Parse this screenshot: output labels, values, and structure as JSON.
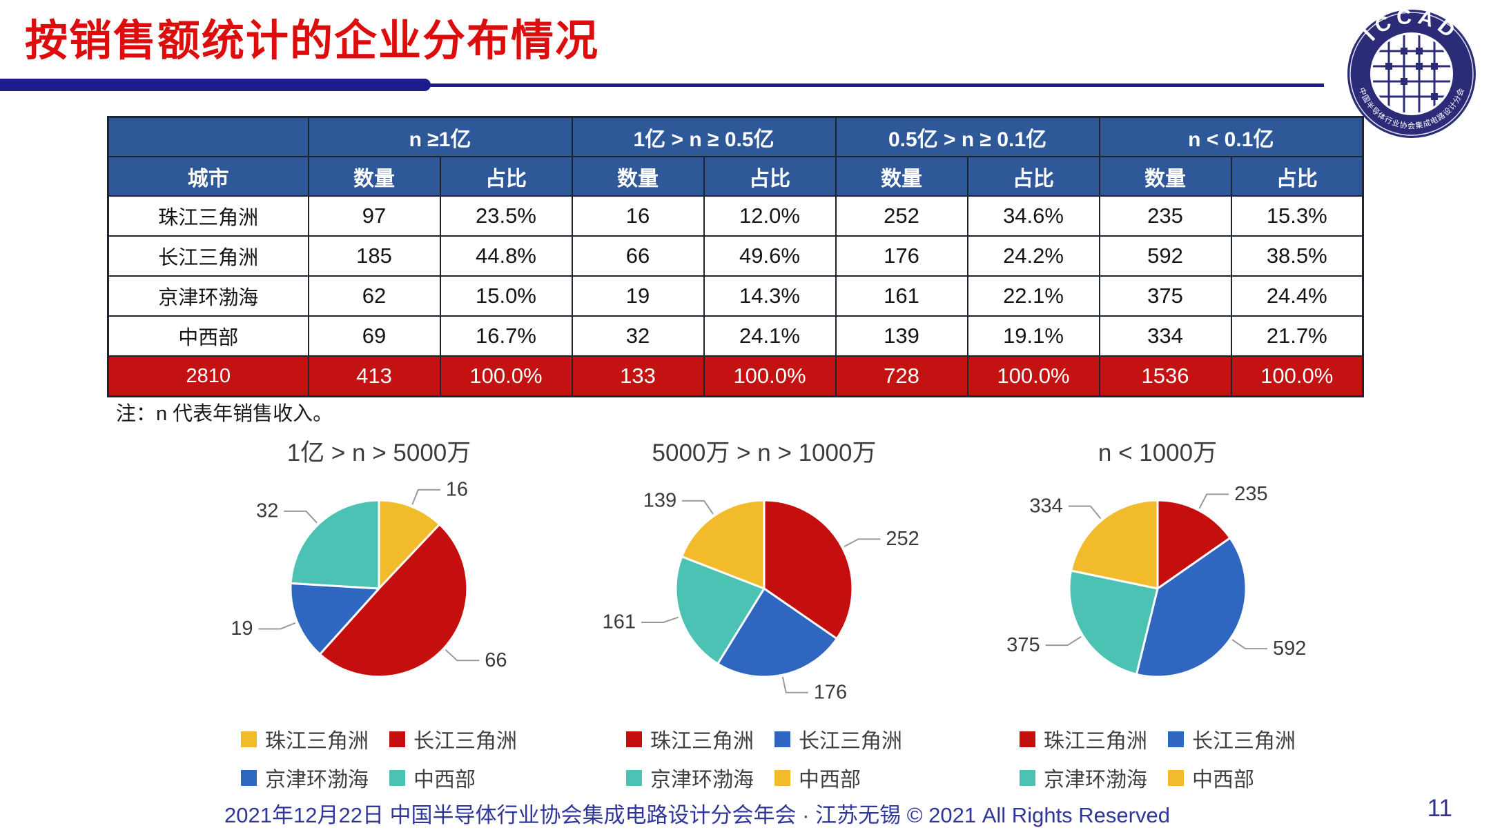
{
  "slide": {
    "title": "按销售额统计的企业分布情况",
    "note": "注：n 代表年销售收入。",
    "footer": "2021年12月22日 中国半导体行业协会集成电路设计分会年会 · 江苏无锡 © 2021 All Rights Reserved",
    "page_number": "11",
    "logo": {
      "text": "ICCAD",
      "subtext": "中国半导体行业协会集成电路设计分会"
    }
  },
  "table": {
    "city_header": "城市",
    "groups": [
      "n ≥1亿",
      "1亿 > n ≥ 0.5亿",
      "0.5亿 > n ≥ 0.1亿",
      "n < 0.1亿"
    ],
    "sub_headers": [
      "数量",
      "占比"
    ],
    "rows": [
      {
        "city": "珠江三角洲",
        "cells": [
          "97",
          "23.5%",
          "16",
          "12.0%",
          "252",
          "34.6%",
          "235",
          "15.3%"
        ]
      },
      {
        "city": "长江三角洲",
        "cells": [
          "185",
          "44.8%",
          "66",
          "49.6%",
          "176",
          "24.2%",
          "592",
          "38.5%"
        ]
      },
      {
        "city": "京津环渤海",
        "cells": [
          "62",
          "15.0%",
          "19",
          "14.3%",
          "161",
          "22.1%",
          "375",
          "24.4%"
        ]
      },
      {
        "city": "中西部",
        "cells": [
          "69",
          "16.7%",
          "32",
          "24.1%",
          "139",
          "19.1%",
          "334",
          "21.7%"
        ]
      }
    ],
    "total_row": {
      "city": "2810",
      "cells": [
        "413",
        "100.0%",
        "133",
        "100.0%",
        "728",
        "100.0%",
        "1536",
        "100.0%"
      ]
    }
  },
  "chart_data": [
    {
      "type": "pie",
      "title": "1亿 > n > 5000万",
      "labels": [
        "珠江三角洲",
        "长江三角洲",
        "京津环渤海",
        "中西部"
      ],
      "values": [
        16,
        66,
        19,
        32
      ],
      "colors": [
        "#F2BB2C",
        "#C50E0E",
        "#2E66C0",
        "#4CC2B4"
      ],
      "legend_position": "bottom"
    },
    {
      "type": "pie",
      "title": "5000万 > n > 1000万",
      "labels": [
        "珠江三角洲",
        "长江三角洲",
        "京津环渤海",
        "中西部"
      ],
      "values": [
        252,
        176,
        161,
        139
      ],
      "colors": [
        "#C50E0E",
        "#2E66C0",
        "#4CC2B4",
        "#F2BB2C"
      ],
      "legend_position": "bottom"
    },
    {
      "type": "pie",
      "title": "n < 1000万",
      "labels": [
        "珠江三角洲",
        "长江三角洲",
        "京津环渤海",
        "中西部"
      ],
      "values": [
        235,
        592,
        375,
        334
      ],
      "colors": [
        "#C50E0E",
        "#2E66C0",
        "#4CC2B4",
        "#F2BB2C"
      ],
      "legend_position": "bottom"
    }
  ],
  "colors": {
    "title_red": "#DE0D0D",
    "bar_navy": "#1C1C8C",
    "header_blue": "#2F5899",
    "total_row_red": "#C41111",
    "footer_indigo": "#2F3699"
  }
}
